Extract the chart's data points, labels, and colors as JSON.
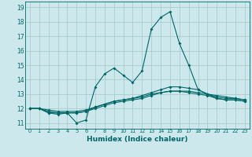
{
  "title": "",
  "xlabel": "Humidex (Indice chaleur)",
  "bg_color": "#cce8ec",
  "grid_color": "#aacccc",
  "line_color": "#006666",
  "xlim": [
    -0.5,
    23.5
  ],
  "ylim": [
    10.6,
    19.4
  ],
  "xticks": [
    0,
    1,
    2,
    3,
    4,
    5,
    6,
    7,
    8,
    9,
    10,
    11,
    12,
    13,
    14,
    15,
    16,
    17,
    18,
    19,
    20,
    21,
    22,
    23
  ],
  "yticks": [
    11,
    12,
    13,
    14,
    15,
    16,
    17,
    18,
    19
  ],
  "lines": [
    {
      "x": [
        0,
        1,
        2,
        3,
        4,
        5,
        6,
        7,
        8,
        9,
        10,
        11,
        12,
        13,
        14,
        15,
        16,
        17,
        18,
        19,
        20,
        21,
        22,
        23
      ],
      "y": [
        12.0,
        12.0,
        11.7,
        11.6,
        11.7,
        11.0,
        11.2,
        13.5,
        14.4,
        14.8,
        14.3,
        13.8,
        14.6,
        17.5,
        18.3,
        18.7,
        16.5,
        15.0,
        13.3,
        13.0,
        12.7,
        12.6,
        12.6,
        12.5
      ]
    },
    {
      "x": [
        0,
        1,
        2,
        3,
        4,
        5,
        6,
        7,
        8,
        9,
        10,
        11,
        12,
        13,
        14,
        15,
        16,
        17,
        18,
        19,
        20,
        21,
        22,
        23
      ],
      "y": [
        12.0,
        12.0,
        11.7,
        11.7,
        11.7,
        11.7,
        11.8,
        12.1,
        12.3,
        12.5,
        12.6,
        12.7,
        12.9,
        13.1,
        13.3,
        13.5,
        13.5,
        13.4,
        13.3,
        13.0,
        12.8,
        12.7,
        12.7,
        12.6
      ]
    },
    {
      "x": [
        0,
        1,
        2,
        3,
        4,
        5,
        6,
        7,
        8,
        9,
        10,
        11,
        12,
        13,
        14,
        15,
        16,
        17,
        18,
        19,
        20,
        21,
        22,
        23
      ],
      "y": [
        12.0,
        12.0,
        11.8,
        11.7,
        11.7,
        11.7,
        11.8,
        12.0,
        12.2,
        12.4,
        12.5,
        12.6,
        12.7,
        12.9,
        13.1,
        13.2,
        13.2,
        13.1,
        13.0,
        12.9,
        12.7,
        12.6,
        12.6,
        12.5
      ]
    },
    {
      "x": [
        0,
        1,
        2,
        3,
        4,
        5,
        6,
        7,
        8,
        9,
        10,
        11,
        12,
        13,
        14,
        15,
        16,
        17,
        18,
        19,
        20,
        21,
        22,
        23
      ],
      "y": [
        12.0,
        12.0,
        11.9,
        11.8,
        11.8,
        11.8,
        11.9,
        12.1,
        12.3,
        12.5,
        12.6,
        12.7,
        12.8,
        13.0,
        13.1,
        13.2,
        13.2,
        13.2,
        13.1,
        13.0,
        12.9,
        12.8,
        12.7,
        12.6
      ]
    }
  ]
}
